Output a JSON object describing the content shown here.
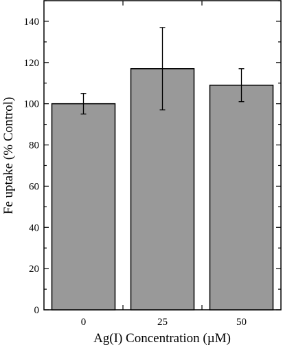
{
  "chart_data": {
    "type": "bar",
    "categories": [
      "0",
      "25",
      "50"
    ],
    "values": [
      100,
      117,
      109
    ],
    "error_low": [
      95,
      97,
      101
    ],
    "error_high": [
      105,
      137,
      117
    ],
    "xlabel": "Ag(I) Concentration (µM)",
    "ylabel": "Fe uptake (% Control)",
    "ylim": [
      0,
      150
    ],
    "yticks": [
      0,
      20,
      40,
      60,
      80,
      100,
      120,
      140
    ],
    "grid": false,
    "legend": "none",
    "bar_color": "#999999",
    "edge_color": "#000000"
  }
}
